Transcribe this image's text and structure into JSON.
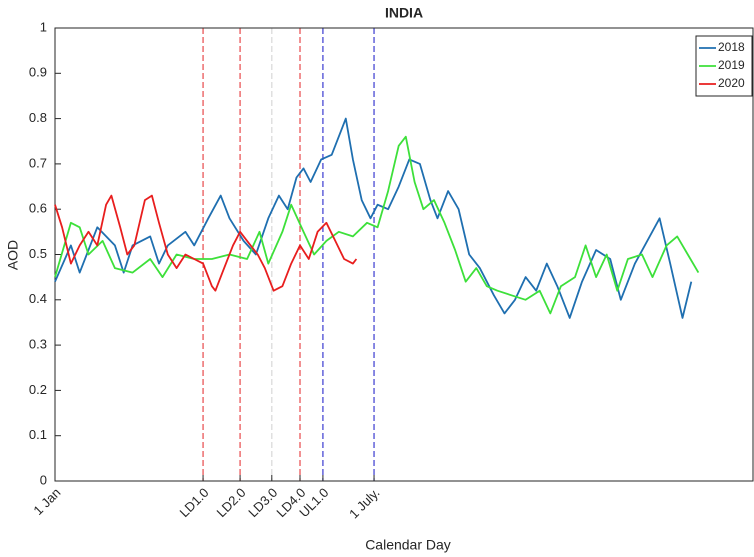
{
  "chart_data": {
    "type": "line",
    "title": "INDIA",
    "xlabel": "Calendar Day",
    "ylabel": "AOD",
    "xlim": [
      1,
      397
    ],
    "ylim": [
      0,
      1
    ],
    "yticks": [
      0,
      0.1,
      0.2,
      0.3,
      0.4,
      0.5,
      0.6,
      0.7,
      0.8,
      0.9,
      1
    ],
    "xticks": [
      {
        "value": 1,
        "label": "1 Jan"
      },
      {
        "value": 85,
        "label": "LD1.0",
        "line": "#e8484a"
      },
      {
        "value": 106,
        "label": "LD2.0",
        "line": "#e8484a"
      },
      {
        "value": 124,
        "label": "LD3.0",
        "line": "#d8d8d8"
      },
      {
        "value": 140,
        "label": "LD4.0",
        "line": "#e8484a"
      },
      {
        "value": 153,
        "label": "UL1.0",
        "line": "#3a3ad0"
      },
      {
        "value": 182,
        "label": "1 July.",
        "line": "#3a3ad0"
      }
    ],
    "legend": "top-right",
    "series": [
      {
        "name": "2018",
        "color": "#1f6fb0",
        "x": [
          1,
          10,
          15,
          25,
          35,
          40,
          45,
          55,
          60,
          65,
          75,
          80,
          88,
          95,
          100,
          108,
          115,
          122,
          128,
          133,
          138,
          142,
          146,
          152,
          158,
          166,
          170,
          175,
          180,
          184,
          190,
          196,
          202,
          208,
          214,
          218,
          224,
          230,
          236,
          242,
          250,
          256,
          262,
          268,
          274,
          280,
          286,
          293,
          300,
          308,
          316,
          322,
          330,
          344,
          350,
          357,
          362
        ],
        "values": [
          0.44,
          0.52,
          0.46,
          0.56,
          0.52,
          0.46,
          0.52,
          0.54,
          0.48,
          0.52,
          0.55,
          0.52,
          0.58,
          0.63,
          0.58,
          0.53,
          0.5,
          0.58,
          0.63,
          0.6,
          0.67,
          0.69,
          0.66,
          0.71,
          0.72,
          0.8,
          0.71,
          0.62,
          0.58,
          0.61,
          0.6,
          0.65,
          0.71,
          0.7,
          0.62,
          0.58,
          0.64,
          0.6,
          0.5,
          0.47,
          0.41,
          0.37,
          0.4,
          0.45,
          0.42,
          0.48,
          0.43,
          0.36,
          0.44,
          0.51,
          0.49,
          0.4,
          0.48,
          0.58,
          0.48,
          0.36,
          0.44
        ]
      },
      {
        "name": "2019",
        "color": "#3de03a",
        "x": [
          1,
          10,
          15,
          20,
          28,
          35,
          45,
          55,
          62,
          70,
          80,
          90,
          100,
          110,
          117,
          122,
          130,
          135,
          142,
          148,
          155,
          162,
          170,
          178,
          184,
          190,
          196,
          200,
          205,
          210,
          216,
          222,
          228,
          234,
          240,
          246,
          252,
          260,
          268,
          276,
          282,
          288,
          296,
          302,
          308,
          314,
          320,
          326,
          334,
          340,
          348,
          354,
          360,
          366
        ],
        "values": [
          0.45,
          0.57,
          0.56,
          0.5,
          0.53,
          0.47,
          0.46,
          0.49,
          0.45,
          0.5,
          0.49,
          0.49,
          0.5,
          0.49,
          0.55,
          0.48,
          0.55,
          0.61,
          0.55,
          0.5,
          0.53,
          0.55,
          0.54,
          0.57,
          0.56,
          0.64,
          0.74,
          0.76,
          0.66,
          0.6,
          0.62,
          0.57,
          0.51,
          0.44,
          0.47,
          0.43,
          0.42,
          0.41,
          0.4,
          0.42,
          0.37,
          0.43,
          0.45,
          0.52,
          0.45,
          0.5,
          0.42,
          0.49,
          0.5,
          0.45,
          0.52,
          0.54,
          0.5,
          0.46
        ]
      },
      {
        "name": "2020",
        "color": "#e81e1e",
        "x": [
          1,
          5,
          10,
          15,
          20,
          25,
          30,
          33,
          38,
          42,
          46,
          52,
          56,
          60,
          65,
          70,
          75,
          80,
          85,
          90,
          92,
          96,
          102,
          106,
          110,
          116,
          120,
          125,
          130,
          135,
          140,
          145,
          150,
          155,
          160,
          165,
          170,
          172
        ],
        "values": [
          0.61,
          0.56,
          0.48,
          0.52,
          0.55,
          0.52,
          0.61,
          0.63,
          0.56,
          0.5,
          0.52,
          0.62,
          0.63,
          0.57,
          0.5,
          0.47,
          0.5,
          0.49,
          0.48,
          0.43,
          0.42,
          0.46,
          0.52,
          0.55,
          0.53,
          0.5,
          0.47,
          0.42,
          0.43,
          0.48,
          0.52,
          0.49,
          0.55,
          0.57,
          0.53,
          0.49,
          0.48,
          0.49
        ]
      }
    ]
  }
}
